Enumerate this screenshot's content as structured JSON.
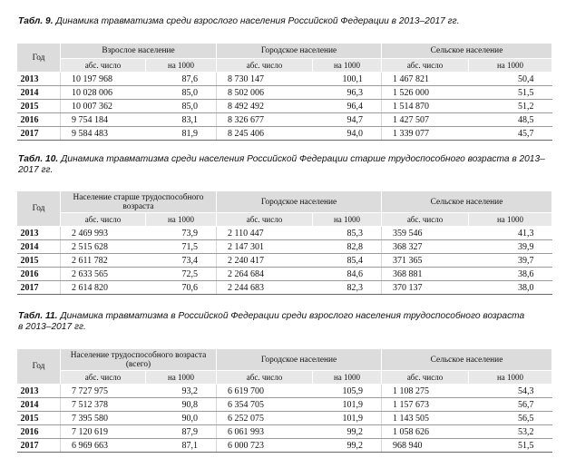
{
  "tables": [
    {
      "label": "Табл. 9.",
      "caption": "Динамика травматизма среди взрослого населения Российской Федерации в 2013–2017 гг.",
      "year_header": "Год",
      "groups": [
        "Взрослое население",
        "Городское население",
        "Сельское население"
      ],
      "sub": [
        "абс. число",
        "на 1000",
        "абс. число",
        "на 1000",
        "абс. число",
        "на 1000"
      ],
      "rows": [
        [
          "2013",
          "10 197 968",
          "87,6",
          "8 730 147",
          "100,1",
          "1 467 821",
          "50,4"
        ],
        [
          "2014",
          "10 028 006",
          "85,0",
          "8 502 006",
          "96,3",
          "1 526 000",
          "51,5"
        ],
        [
          "2015",
          "10 007 362",
          "85,0",
          "8 492 492",
          "96,4",
          "1 514 870",
          "51,2"
        ],
        [
          "2016",
          "9 754 184",
          "83,1",
          "8 326 677",
          "94,7",
          "1 427 507",
          "48,5"
        ],
        [
          "2017",
          "9 584 483",
          "81,9",
          "8 245 406",
          "94,0",
          "1 339 077",
          "45,7"
        ]
      ]
    },
    {
      "label": "Табл. 10.",
      "caption_line1": "Динамика травматизма среди населения Российской Федерации старше трудоспособного возраста в 2013–",
      "caption_line2": "2017 гг.",
      "year_header": "Год",
      "groups": [
        "Население старше трудоспособного возраста",
        "Городское население",
        "Сельское население"
      ],
      "sub": [
        "абс. число",
        "на 1000",
        "абс. число",
        "на 1000",
        "абс. число",
        "на 1000"
      ],
      "rows": [
        [
          "2013",
          "2 469 993",
          "73,9",
          "2 110 447",
          "85,3",
          "359 546",
          "41,3"
        ],
        [
          "2014",
          "2 515 628",
          "71,5",
          "2 147 301",
          "82,8",
          "368 327",
          "39,9"
        ],
        [
          "2015",
          "2 611 782",
          "73,4",
          "2 240 417",
          "85,4",
          "371 365",
          "39,7"
        ],
        [
          "2016",
          "2 633 565",
          "72,5",
          "2 264 684",
          "84,6",
          "368 881",
          "38,6"
        ],
        [
          "2017",
          "2 614 820",
          "70,6",
          "2 244 683",
          "82,3",
          "370 137",
          "38,0"
        ]
      ]
    },
    {
      "label": "Табл. 11.",
      "caption_line1": "Динамика травматизма в Российской Федерации среди взрослого населения трудоспособного возраста",
      "caption_line2": "в 2013–2017 гг.",
      "year_header": "Год",
      "groups": [
        "Население трудоспособного возраста (всего)",
        "Городское население",
        "Сельское население"
      ],
      "sub": [
        "абс. число",
        "на 1000",
        "абс. число",
        "на 1000",
        "абс. число",
        "на 1000"
      ],
      "rows": [
        [
          "2013",
          "7 727 975",
          "93,2",
          "6 619 700",
          "105,9",
          "1 108 275",
          "54,3"
        ],
        [
          "2014",
          "7 512 378",
          "90,8",
          "6 354 705",
          "101,9",
          "1 157 673",
          "56,7"
        ],
        [
          "2015",
          "7 395 580",
          "90,0",
          "6 252 075",
          "101,9",
          "1 143 505",
          "56,5"
        ],
        [
          "2016",
          "7 120 619",
          "87,9",
          "6 061 993",
          "99,2",
          "1 058 626",
          "53,2"
        ],
        [
          "2017",
          "6 969 663",
          "87,1",
          "6 000 723",
          "99,2",
          "968 940",
          "51,5"
        ]
      ]
    }
  ]
}
